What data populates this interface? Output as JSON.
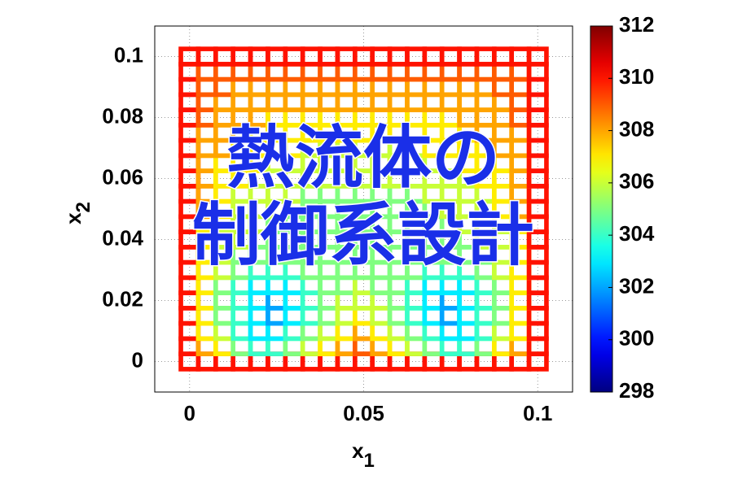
{
  "chart_data": {
    "type": "mesh",
    "overlay_text": [
      "熱流体の",
      "制御系設計"
    ],
    "xlabel": "x",
    "xlabel_sub": "1",
    "ylabel": "x",
    "ylabel_sub": "2",
    "xlim": [
      -0.01,
      0.11
    ],
    "xticks": [
      0,
      0.05,
      0.1
    ],
    "ylim": [
      -0.01,
      0.11
    ],
    "yticks": [
      0,
      0.02,
      0.04,
      0.06,
      0.08,
      0.1
    ],
    "grid": true,
    "colormap": "jet",
    "clim": [
      298,
      312
    ],
    "cticks": [
      298,
      300,
      302,
      304,
      306,
      308,
      310,
      312
    ],
    "x": [
      0,
      0.005,
      0.01,
      0.015,
      0.02,
      0.025,
      0.03,
      0.035,
      0.04,
      0.045,
      0.05,
      0.055,
      0.06,
      0.065,
      0.07,
      0.075,
      0.08,
      0.085,
      0.09,
      0.095,
      0.1
    ],
    "y": [
      0,
      0.005,
      0.01,
      0.015,
      0.02,
      0.025,
      0.03,
      0.035,
      0.04,
      0.045,
      0.05,
      0.055,
      0.06,
      0.065,
      0.07,
      0.075,
      0.08,
      0.085,
      0.09,
      0.095,
      0.1
    ],
    "z": [
      [
        310,
        310,
        310,
        310,
        310,
        310,
        310,
        310,
        310,
        310,
        310,
        310,
        310,
        310,
        310,
        310,
        310,
        310,
        310,
        310,
        310
      ],
      [
        310,
        308,
        307,
        305,
        304,
        304,
        305,
        306,
        307,
        308,
        309,
        308,
        307,
        306,
        305,
        304,
        304,
        305,
        307,
        308,
        310
      ],
      [
        310,
        307,
        306,
        304,
        303,
        303,
        304,
        305,
        306,
        307,
        308,
        307,
        306,
        305,
        304,
        303,
        303,
        304,
        306,
        307,
        310
      ],
      [
        310,
        307,
        305,
        304,
        303,
        302,
        303,
        304,
        305,
        306,
        307,
        306,
        305,
        304,
        303,
        302,
        303,
        304,
        305,
        307,
        310
      ],
      [
        310,
        307,
        305,
        304,
        303,
        302,
        303,
        304,
        305,
        306,
        306,
        306,
        305,
        304,
        303,
        302,
        303,
        304,
        305,
        307,
        310
      ],
      [
        310,
        307,
        305,
        304,
        303,
        303,
        303,
        304,
        305,
        305,
        306,
        305,
        305,
        304,
        303,
        303,
        303,
        304,
        305,
        307,
        310
      ],
      [
        310,
        307,
        306,
        305,
        304,
        304,
        304,
        305,
        305,
        305,
        305,
        305,
        305,
        305,
        304,
        304,
        304,
        305,
        306,
        307,
        310
      ],
      [
        310,
        307,
        306,
        305,
        305,
        305,
        305,
        305,
        305,
        305,
        305,
        305,
        305,
        305,
        305,
        305,
        305,
        305,
        306,
        307,
        310
      ],
      [
        310,
        307,
        306,
        306,
        305,
        305,
        305,
        305,
        305,
        305,
        305,
        305,
        305,
        305,
        305,
        305,
        305,
        306,
        306,
        307,
        310
      ],
      [
        310,
        307,
        306,
        306,
        306,
        305,
        305,
        305,
        305,
        305,
        305,
        305,
        305,
        305,
        305,
        305,
        306,
        306,
        306,
        307,
        310
      ],
      [
        310,
        308,
        307,
        306,
        306,
        306,
        305,
        305,
        305,
        305,
        305,
        305,
        305,
        305,
        305,
        306,
        306,
        306,
        307,
        308,
        310
      ],
      [
        310,
        308,
        307,
        306,
        306,
        306,
        306,
        305,
        305,
        305,
        305,
        305,
        305,
        305,
        306,
        306,
        306,
        306,
        307,
        308,
        310
      ],
      [
        310,
        308,
        307,
        307,
        306,
        306,
        306,
        306,
        306,
        306,
        306,
        306,
        306,
        306,
        306,
        306,
        306,
        307,
        307,
        308,
        310
      ],
      [
        310,
        308,
        307,
        307,
        307,
        306,
        306,
        306,
        306,
        306,
        306,
        306,
        306,
        306,
        306,
        306,
        307,
        307,
        307,
        308,
        310
      ],
      [
        310,
        308,
        308,
        307,
        307,
        307,
        307,
        306,
        306,
        306,
        306,
        306,
        306,
        306,
        307,
        307,
        307,
        307,
        308,
        308,
        310
      ],
      [
        310,
        308,
        308,
        308,
        307,
        307,
        307,
        307,
        307,
        307,
        307,
        307,
        307,
        307,
        307,
        307,
        307,
        308,
        308,
        308,
        310
      ],
      [
        310,
        309,
        308,
        308,
        308,
        307,
        307,
        307,
        307,
        307,
        307,
        307,
        307,
        307,
        307,
        307,
        308,
        308,
        308,
        309,
        310
      ],
      [
        310,
        309,
        308,
        308,
        308,
        308,
        308,
        308,
        308,
        308,
        308,
        308,
        308,
        308,
        308,
        308,
        308,
        308,
        308,
        309,
        310
      ],
      [
        310,
        309,
        309,
        308,
        308,
        308,
        308,
        308,
        308,
        308,
        308,
        308,
        308,
        308,
        308,
        308,
        308,
        308,
        309,
        309,
        310
      ],
      [
        310,
        309,
        309,
        309,
        309,
        309,
        309,
        309,
        309,
        309,
        309,
        309,
        309,
        309,
        309,
        309,
        309,
        309,
        309,
        309,
        310
      ],
      [
        310,
        310,
        310,
        310,
        310,
        310,
        310,
        310,
        310,
        310,
        310,
        310,
        310,
        310,
        310,
        310,
        310,
        310,
        310,
        310,
        310
      ]
    ]
  }
}
